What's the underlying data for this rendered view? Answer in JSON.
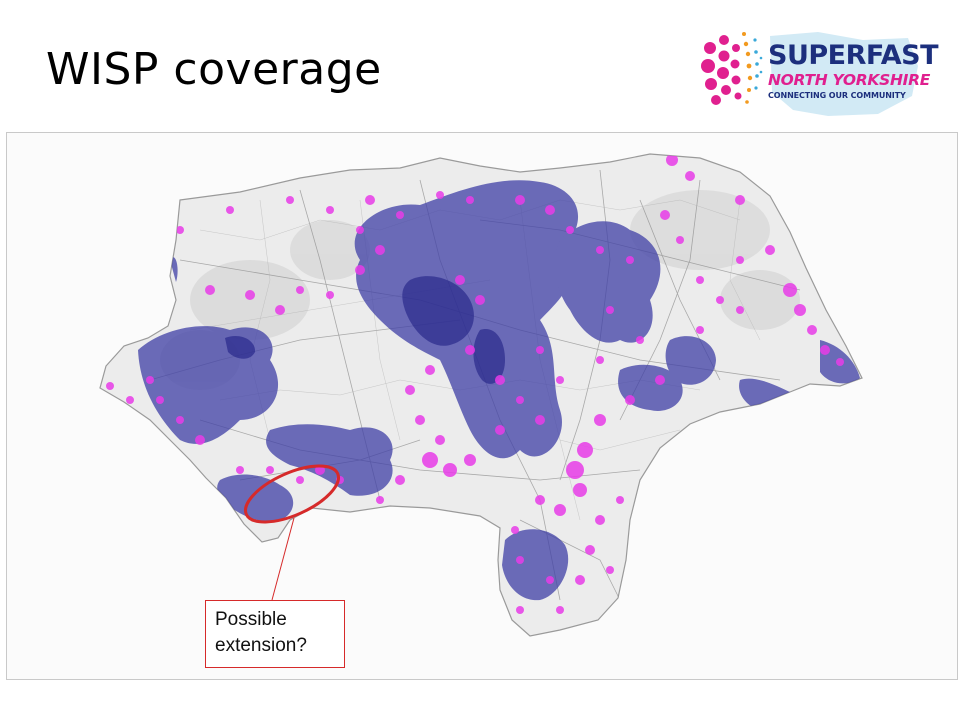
{
  "slide": {
    "title": "WISP coverage",
    "logo": {
      "line1": "SUPERFAST",
      "line2": "NORTH YORKSHIRE",
      "line3": "CONNECTING OUR COMMUNITY"
    },
    "callout": {
      "line1": "Possible",
      "line2": "extension?"
    }
  },
  "map": {
    "highlight_shape": "ellipse",
    "colors": {
      "county_fill": "#ececec",
      "coverage_fill": "#3f3fa6",
      "coverage_dense": "#2a2a8c",
      "town_coverage": "#e83ce8",
      "highlight_outline": "#d62a2a",
      "logo_navy": "#1c2f7d",
      "logo_pink": "#e0208f",
      "logo_cyan": "#8fd3ea"
    }
  }
}
